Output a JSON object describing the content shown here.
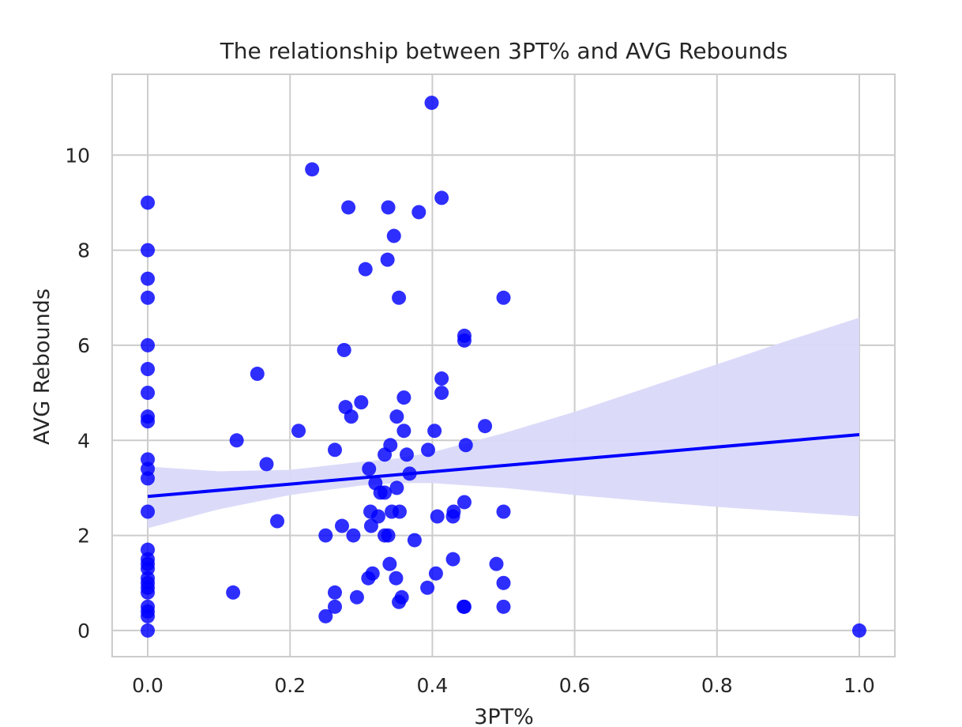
{
  "chart_data": {
    "type": "scatter",
    "title": "The relationship between 3PT% and AVG Rebounds",
    "xlabel": "3PT%",
    "ylabel": "AVG Rebounds",
    "xlim": [
      -0.05,
      1.05
    ],
    "ylim": [
      -0.55,
      11.7
    ],
    "xticks": [
      0.0,
      0.2,
      0.4,
      0.6,
      0.8,
      1.0
    ],
    "xtick_labels": [
      "0.0",
      "0.2",
      "0.4",
      "0.6",
      "0.8",
      "1.0"
    ],
    "yticks": [
      0,
      2,
      4,
      6,
      8,
      10
    ],
    "ytick_labels": [
      "0",
      "2",
      "4",
      "6",
      "8",
      "10"
    ],
    "grid": true,
    "point_color": "#0000ff",
    "band_color": "#d9d9f9",
    "points": [
      {
        "x": 0.0,
        "y": 9.0
      },
      {
        "x": 0.0,
        "y": 8.0
      },
      {
        "x": 0.0,
        "y": 7.4
      },
      {
        "x": 0.0,
        "y": 7.0
      },
      {
        "x": 0.0,
        "y": 6.0
      },
      {
        "x": 0.0,
        "y": 5.5
      },
      {
        "x": 0.0,
        "y": 5.0
      },
      {
        "x": 0.0,
        "y": 4.5
      },
      {
        "x": 0.0,
        "y": 4.4
      },
      {
        "x": 0.0,
        "y": 3.6
      },
      {
        "x": 0.0,
        "y": 3.4
      },
      {
        "x": 0.0,
        "y": 3.2
      },
      {
        "x": 0.0,
        "y": 2.5
      },
      {
        "x": 0.0,
        "y": 1.7
      },
      {
        "x": 0.0,
        "y": 1.5
      },
      {
        "x": 0.0,
        "y": 1.4
      },
      {
        "x": 0.0,
        "y": 1.3
      },
      {
        "x": 0.0,
        "y": 1.1
      },
      {
        "x": 0.0,
        "y": 1.0
      },
      {
        "x": 0.0,
        "y": 0.9
      },
      {
        "x": 0.0,
        "y": 0.8
      },
      {
        "x": 0.0,
        "y": 0.5
      },
      {
        "x": 0.0,
        "y": 0.4
      },
      {
        "x": 0.0,
        "y": 0.3
      },
      {
        "x": 0.0,
        "y": 0.0
      },
      {
        "x": 0.12,
        "y": 0.8
      },
      {
        "x": 0.125,
        "y": 4.0
      },
      {
        "x": 0.154,
        "y": 5.4
      },
      {
        "x": 0.167,
        "y": 3.5
      },
      {
        "x": 0.182,
        "y": 2.3
      },
      {
        "x": 0.212,
        "y": 4.2
      },
      {
        "x": 0.231,
        "y": 9.7
      },
      {
        "x": 0.25,
        "y": 0.3
      },
      {
        "x": 0.25,
        "y": 2.0
      },
      {
        "x": 0.263,
        "y": 0.5
      },
      {
        "x": 0.263,
        "y": 0.8
      },
      {
        "x": 0.263,
        "y": 3.8
      },
      {
        "x": 0.273,
        "y": 2.2
      },
      {
        "x": 0.276,
        "y": 5.9
      },
      {
        "x": 0.278,
        "y": 4.7
      },
      {
        "x": 0.282,
        "y": 8.9
      },
      {
        "x": 0.286,
        "y": 4.5
      },
      {
        "x": 0.289,
        "y": 2.0
      },
      {
        "x": 0.294,
        "y": 0.7
      },
      {
        "x": 0.3,
        "y": 4.8
      },
      {
        "x": 0.306,
        "y": 7.6
      },
      {
        "x": 0.31,
        "y": 1.1
      },
      {
        "x": 0.311,
        "y": 3.4
      },
      {
        "x": 0.313,
        "y": 2.5
      },
      {
        "x": 0.314,
        "y": 2.2
      },
      {
        "x": 0.316,
        "y": 1.2
      },
      {
        "x": 0.32,
        "y": 3.1
      },
      {
        "x": 0.324,
        "y": 2.4
      },
      {
        "x": 0.327,
        "y": 2.9
      },
      {
        "x": 0.333,
        "y": 2.0
      },
      {
        "x": 0.333,
        "y": 3.7
      },
      {
        "x": 0.333,
        "y": 2.9
      },
      {
        "x": 0.337,
        "y": 7.8
      },
      {
        "x": 0.338,
        "y": 8.9
      },
      {
        "x": 0.338,
        "y": 2.0
      },
      {
        "x": 0.34,
        "y": 1.4
      },
      {
        "x": 0.341,
        "y": 3.9
      },
      {
        "x": 0.343,
        "y": 2.5
      },
      {
        "x": 0.346,
        "y": 8.3
      },
      {
        "x": 0.349,
        "y": 1.1
      },
      {
        "x": 0.35,
        "y": 4.5
      },
      {
        "x": 0.35,
        "y": 3.0
      },
      {
        "x": 0.353,
        "y": 0.6
      },
      {
        "x": 0.353,
        "y": 7.0
      },
      {
        "x": 0.354,
        "y": 2.5
      },
      {
        "x": 0.357,
        "y": 0.7
      },
      {
        "x": 0.36,
        "y": 4.9
      },
      {
        "x": 0.36,
        "y": 4.2
      },
      {
        "x": 0.364,
        "y": 3.7
      },
      {
        "x": 0.368,
        "y": 3.3
      },
      {
        "x": 0.375,
        "y": 1.9
      },
      {
        "x": 0.381,
        "y": 8.8
      },
      {
        "x": 0.393,
        "y": 0.9
      },
      {
        "x": 0.394,
        "y": 3.8
      },
      {
        "x": 0.399,
        "y": 11.1
      },
      {
        "x": 0.403,
        "y": 4.2
      },
      {
        "x": 0.405,
        "y": 1.2
      },
      {
        "x": 0.407,
        "y": 2.4
      },
      {
        "x": 0.413,
        "y": 9.1
      },
      {
        "x": 0.413,
        "y": 5.3
      },
      {
        "x": 0.413,
        "y": 5.0
      },
      {
        "x": 0.429,
        "y": 2.4
      },
      {
        "x": 0.429,
        "y": 1.5
      },
      {
        "x": 0.43,
        "y": 2.5
      },
      {
        "x": 0.444,
        "y": 0.5
      },
      {
        "x": 0.445,
        "y": 0.5
      },
      {
        "x": 0.445,
        "y": 6.2
      },
      {
        "x": 0.445,
        "y": 6.1
      },
      {
        "x": 0.445,
        "y": 2.7
      },
      {
        "x": 0.447,
        "y": 3.9
      },
      {
        "x": 0.474,
        "y": 4.3
      },
      {
        "x": 0.49,
        "y": 1.4
      },
      {
        "x": 0.5,
        "y": 7.0
      },
      {
        "x": 0.5,
        "y": 2.5
      },
      {
        "x": 0.5,
        "y": 1.0
      },
      {
        "x": 0.5,
        "y": 0.5
      },
      {
        "x": 1.0,
        "y": 0.0
      }
    ],
    "regression": {
      "x": [
        0.0,
        1.0
      ],
      "y": [
        2.82,
        4.12
      ]
    },
    "confidence_band": {
      "x": [
        0.0,
        0.1,
        0.2,
        0.3,
        0.35,
        0.4,
        0.5,
        0.6,
        0.7,
        0.8,
        0.9,
        1.0
      ],
      "lower": [
        2.15,
        2.55,
        2.85,
        3.05,
        3.1,
        3.1,
        3.0,
        2.85,
        2.72,
        2.6,
        2.5,
        2.4
      ],
      "upper": [
        3.45,
        3.35,
        3.38,
        3.55,
        3.62,
        3.75,
        4.15,
        4.6,
        5.1,
        5.6,
        6.1,
        6.58
      ]
    }
  }
}
